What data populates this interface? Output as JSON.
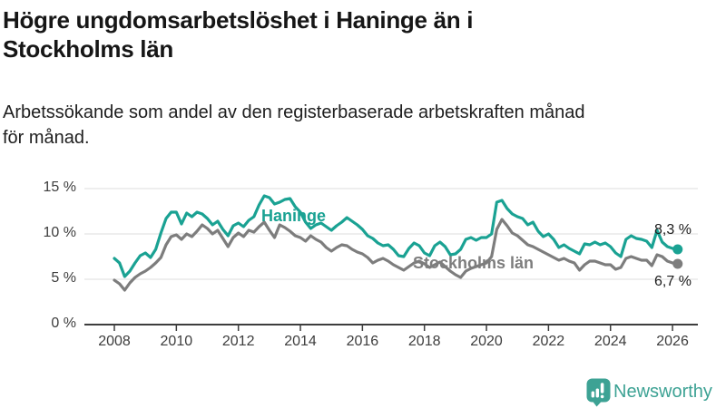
{
  "header": {
    "title_lines": [
      "Högre ungdomsarbetslöshet i Haninge än i",
      "Stockholms län"
    ],
    "subtitle_lines": [
      "Arbetssökande som andel av den registerbaserade arbetskraften månad",
      "för månad."
    ]
  },
  "chart_data": {
    "type": "line",
    "title": "Högre ungdomsarbetslöshet i Haninge än i Stockholms län",
    "subtitle": "Arbetssökande som andel av den registerbaserade arbetskraften månad för månad.",
    "xlabel": "",
    "ylabel": "%",
    "x_start_year": 2008,
    "x_step_years": 0.166667,
    "x_ticks": [
      2008,
      2010,
      2012,
      2014,
      2016,
      2018,
      2020,
      2022,
      2024,
      2026
    ],
    "y_ticks": [
      {
        "value": 0,
        "label": "0 %"
      },
      {
        "value": 5,
        "label": "5 %"
      },
      {
        "value": 10,
        "label": "10 %"
      },
      {
        "value": 15,
        "label": "15 %"
      }
    ],
    "ylim": [
      0,
      15.5
    ],
    "grid": "horizontal",
    "legend_position": "inline-labels",
    "series": [
      {
        "name": "Haninge",
        "color": "#1aa293",
        "end_label": "8,3 %",
        "end_value": 8.3,
        "values": [
          7.3,
          6.8,
          5.3,
          5.9,
          6.8,
          7.6,
          7.9,
          7.4,
          8.3,
          10.1,
          11.7,
          12.4,
          12.4,
          11.1,
          12.3,
          11.9,
          12.4,
          12.2,
          11.7,
          11.0,
          11.4,
          10.5,
          9.8,
          10.9,
          11.2,
          10.8,
          11.5,
          11.9,
          13.2,
          14.2,
          14.0,
          13.3,
          13.5,
          13.8,
          13.9,
          13.0,
          12.4,
          11.3,
          10.6,
          11.0,
          11.2,
          10.8,
          10.4,
          10.9,
          11.3,
          11.8,
          11.4,
          11.0,
          10.5,
          9.8,
          9.5,
          9.0,
          8.7,
          8.8,
          8.3,
          7.6,
          7.5,
          8.4,
          9.0,
          8.7,
          7.9,
          7.6,
          8.7,
          9.1,
          8.6,
          7.7,
          7.8,
          8.3,
          9.4,
          9.6,
          9.3,
          9.6,
          9.6,
          10.0,
          13.5,
          13.7,
          12.8,
          12.2,
          11.9,
          11.7,
          11.0,
          11.3,
          10.3,
          9.7,
          10.0,
          9.4,
          8.5,
          8.8,
          8.4,
          8.1,
          7.8,
          8.9,
          8.8,
          9.1,
          8.8,
          9.0,
          8.6,
          7.9,
          7.5,
          9.4,
          9.8,
          9.5,
          9.4,
          9.2,
          8.5,
          10.4,
          9.1,
          8.6,
          8.4,
          8.3
        ]
      },
      {
        "name": "Stockholms län",
        "color": "#7d7d7d",
        "end_label": "6,7 %",
        "end_value": 6.7,
        "values": [
          4.9,
          4.5,
          3.8,
          4.6,
          5.2,
          5.6,
          5.9,
          6.3,
          6.8,
          7.4,
          8.8,
          9.7,
          9.9,
          9.4,
          10.0,
          9.7,
          10.3,
          11.0,
          10.6,
          10.0,
          10.4,
          9.5,
          8.6,
          9.6,
          10.1,
          9.7,
          10.4,
          10.2,
          10.8,
          11.3,
          10.4,
          9.6,
          11.0,
          10.7,
          10.3,
          9.8,
          9.6,
          9.2,
          9.8,
          9.4,
          9.1,
          8.5,
          8.1,
          8.5,
          8.8,
          8.7,
          8.3,
          8.0,
          7.8,
          7.4,
          6.8,
          7.1,
          7.3,
          7.0,
          6.6,
          6.3,
          6.0,
          6.4,
          6.8,
          7.0,
          6.7,
          6.3,
          6.6,
          6.9,
          6.4,
          5.9,
          5.5,
          5.2,
          5.9,
          6.2,
          6.4,
          6.6,
          6.8,
          7.5,
          10.5,
          11.6,
          10.9,
          10.1,
          9.8,
          9.3,
          8.8,
          8.6,
          8.3,
          8.0,
          7.7,
          7.4,
          7.1,
          7.3,
          7.0,
          6.8,
          6.0,
          6.6,
          7.0,
          7.0,
          6.8,
          6.6,
          6.6,
          6.1,
          6.3,
          7.3,
          7.5,
          7.3,
          7.1,
          7.1,
          6.5,
          7.7,
          7.5,
          7.0,
          6.8,
          6.7
        ]
      }
    ]
  },
  "footer": {
    "brand": "Newsworthy",
    "brand_color": "#3da294"
  }
}
